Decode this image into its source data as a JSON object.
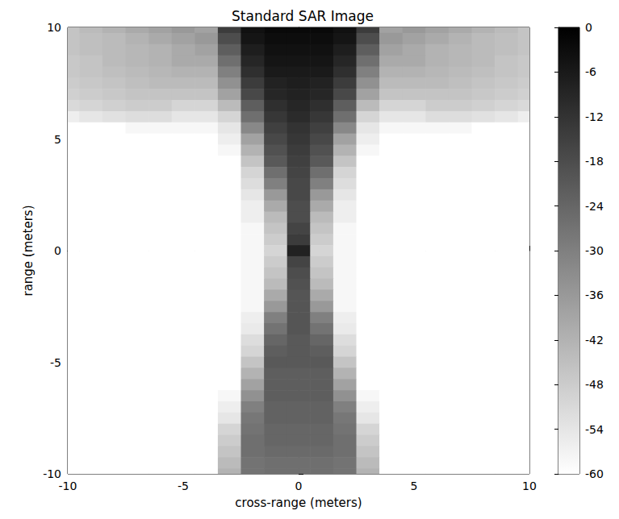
{
  "chart_data": {
    "type": "heatmap",
    "title": "Standard SAR Image",
    "x_label": "cross-range (meters)",
    "y_label": "range (meters)",
    "xlim": [
      -10,
      10
    ],
    "ylim": [
      -10,
      10
    ],
    "xticks": [
      -10,
      -5,
      0,
      5,
      10
    ],
    "yticks": [
      -10,
      -5,
      0,
      5,
      10
    ],
    "grid": false,
    "x": [
      -10,
      -9,
      -8,
      -7,
      -6,
      -5,
      -4,
      -3,
      -2,
      -1,
      0,
      1,
      2,
      3,
      4,
      5,
      6,
      7,
      8,
      9,
      10
    ],
    "y": [
      10,
      9.5,
      9,
      8.5,
      8,
      7.5,
      7,
      6.5,
      6,
      5.5,
      5,
      4.5,
      4,
      3.5,
      3,
      2.5,
      2,
      1.5,
      1,
      0.5,
      0,
      -0.5,
      -1,
      -1.5,
      -2,
      -2.5,
      -3,
      -3.5,
      -4,
      -4.5,
      -5,
      -5.5,
      -6,
      -6.5,
      -7,
      -7.5,
      -8,
      -8.5,
      -9,
      -9.5,
      -10
    ],
    "cells": [
      [
        -46,
        -44,
        -42,
        -40,
        -38,
        -36,
        -38,
        -14,
        -4,
        -2,
        -2,
        -2,
        -4,
        -14,
        -38,
        -36,
        -38,
        -40,
        -42,
        -44,
        -46
      ],
      [
        -46,
        -45,
        -44,
        -42,
        -40,
        -38,
        -36,
        -18,
        -5,
        -3,
        -3,
        -3,
        -5,
        -18,
        -36,
        -38,
        -40,
        -42,
        -44,
        -45,
        -46
      ],
      [
        -46,
        -45,
        -44,
        -43,
        -42,
        -40,
        -38,
        -22,
        -7,
        -4,
        -4,
        -4,
        -7,
        -22,
        -38,
        -40,
        -42,
        -43,
        -44,
        -45,
        -46
      ],
      [
        -47,
        -46,
        -44,
        -43,
        -42,
        -40,
        -40,
        -26,
        -9,
        -5,
        -5,
        -5,
        -9,
        -26,
        -40,
        -40,
        -42,
        -43,
        -44,
        -46,
        -47
      ],
      [
        -47,
        -46,
        -45,
        -44,
        -43,
        -42,
        -42,
        -30,
        -11,
        -6,
        -6,
        -6,
        -11,
        -30,
        -42,
        -42,
        -43,
        -44,
        -45,
        -46,
        -47
      ],
      [
        -48,
        -47,
        -46,
        -45,
        -44,
        -44,
        -44,
        -34,
        -14,
        -8,
        -7,
        -8,
        -14,
        -34,
        -44,
        -44,
        -44,
        -45,
        -46,
        -47,
        -48
      ],
      [
        -49,
        -48,
        -47,
        -46,
        -46,
        -46,
        -46,
        -38,
        -17,
        -9,
        -8,
        -9,
        -17,
        -38,
        -46,
        -46,
        -46,
        -46,
        -47,
        -48,
        -49
      ],
      [
        -51,
        -50,
        -49,
        -48,
        -48,
        -50,
        -50,
        -44,
        -22,
        -11,
        -9,
        -11,
        -22,
        -44,
        -50,
        -50,
        -48,
        -48,
        -49,
        -50,
        -51
      ],
      [
        -56,
        -54,
        -53,
        -52,
        -52,
        -54,
        -54,
        -50,
        -26,
        -13,
        -10,
        -13,
        -26,
        -50,
        -54,
        -54,
        -52,
        -52,
        -53,
        -54,
        -56
      ],
      [
        -60,
        -60,
        -60,
        -58,
        -58,
        -58,
        -58,
        -54,
        -32,
        -15,
        -12,
        -15,
        -32,
        -54,
        -58,
        -58,
        -58,
        -58,
        -60,
        -60,
        -60
      ],
      [
        -60,
        -60,
        -60,
        -60,
        -60,
        -60,
        -60,
        -56,
        -38,
        -17,
        -13,
        -17,
        -38,
        -56,
        -60,
        -60,
        -60,
        -60,
        -60,
        -60,
        -60
      ],
      [
        -60,
        -60,
        -60,
        -60,
        -60,
        -60,
        -60,
        -58,
        -42,
        -19,
        -14,
        -19,
        -42,
        -58,
        -60,
        -60,
        -60,
        -60,
        -60,
        -60,
        -60
      ],
      [
        -60,
        -60,
        -60,
        -60,
        -60,
        -60,
        -60,
        -60,
        -46,
        -21,
        -15,
        -21,
        -46,
        -60,
        -60,
        -60,
        -60,
        -60,
        -60,
        -60,
        -60
      ],
      [
        -60,
        -60,
        -60,
        -60,
        -60,
        -60,
        -60,
        -60,
        -50,
        -26,
        -16,
        -26,
        -50,
        -60,
        -60,
        -60,
        -60,
        -60,
        -60,
        -60,
        -60
      ],
      [
        -60,
        -60,
        -60,
        -60,
        -60,
        -60,
        -60,
        -60,
        -52,
        -30,
        -17,
        -30,
        -52,
        -60,
        -60,
        -60,
        -60,
        -60,
        -60,
        -60,
        -60
      ],
      [
        -60,
        -60,
        -60,
        -60,
        -60,
        -60,
        -60,
        -60,
        -54,
        -36,
        -17,
        -36,
        -54,
        -60,
        -60,
        -60,
        -60,
        -60,
        -60,
        -60,
        -60
      ],
      [
        -60,
        -60,
        -60,
        -60,
        -60,
        -60,
        -60,
        -60,
        -56,
        -40,
        -18,
        -40,
        -56,
        -60,
        -60,
        -60,
        -60,
        -60,
        -60,
        -60,
        -60
      ],
      [
        -60,
        -60,
        -60,
        -60,
        -60,
        -60,
        -60,
        -60,
        -56,
        -44,
        -18,
        -44,
        -56,
        -60,
        -60,
        -60,
        -60,
        -60,
        -60,
        -60,
        -60
      ],
      [
        -60,
        -60,
        -60,
        -60,
        -60,
        -60,
        -60,
        -60,
        -58,
        -46,
        -16,
        -46,
        -58,
        -60,
        -60,
        -60,
        -60,
        -60,
        -60,
        -60,
        -60
      ],
      [
        -60,
        -60,
        -60,
        -60,
        -60,
        -60,
        -60,
        -60,
        -58,
        -48,
        -14,
        -48,
        -58,
        -60,
        -60,
        -60,
        -60,
        -60,
        -60,
        -60,
        -60
      ],
      [
        -60,
        -60,
        -60,
        -60,
        -60,
        -60,
        -60,
        -60,
        -58,
        -50,
        -8,
        -50,
        -58,
        -60,
        -60,
        -60,
        -60,
        -60,
        -60,
        -60,
        -60
      ],
      [
        -60,
        -60,
        -60,
        -60,
        -60,
        -60,
        -60,
        -60,
        -58,
        -48,
        -16,
        -48,
        -58,
        -60,
        -60,
        -60,
        -60,
        -60,
        -60,
        -60,
        -60
      ],
      [
        -60,
        -60,
        -60,
        -60,
        -60,
        -60,
        -60,
        -60,
        -58,
        -46,
        -18,
        -46,
        -58,
        -60,
        -60,
        -60,
        -60,
        -60,
        -60,
        -60,
        -60
      ],
      [
        -60,
        -60,
        -60,
        -60,
        -60,
        -60,
        -60,
        -60,
        -58,
        -44,
        -19,
        -44,
        -58,
        -60,
        -60,
        -60,
        -60,
        -60,
        -60,
        -60,
        -60
      ],
      [
        -60,
        -60,
        -60,
        -60,
        -60,
        -60,
        -60,
        -60,
        -58,
        -40,
        -20,
        -40,
        -58,
        -60,
        -60,
        -60,
        -60,
        -60,
        -60,
        -60,
        -60
      ],
      [
        -60,
        -60,
        -60,
        -60,
        -60,
        -60,
        -60,
        -60,
        -58,
        -36,
        -20,
        -36,
        -58,
        -60,
        -60,
        -60,
        -60,
        -60,
        -60,
        -60,
        -60
      ],
      [
        -60,
        -60,
        -60,
        -60,
        -60,
        -60,
        -60,
        -60,
        -56,
        -30,
        -20,
        -30,
        -56,
        -60,
        -60,
        -60,
        -60,
        -60,
        -60,
        -60,
        -60
      ],
      [
        -60,
        -60,
        -60,
        -60,
        -60,
        -60,
        -60,
        -60,
        -55,
        -27,
        -20,
        -27,
        -55,
        -60,
        -60,
        -60,
        -60,
        -60,
        -60,
        -60,
        -60
      ],
      [
        -60,
        -60,
        -60,
        -60,
        -60,
        -60,
        -60,
        -60,
        -52,
        -24,
        -21,
        -24,
        -52,
        -60,
        -60,
        -60,
        -60,
        -60,
        -60,
        -60,
        -60
      ],
      [
        -60,
        -60,
        -60,
        -60,
        -60,
        -60,
        -60,
        -60,
        -50,
        -22,
        -21,
        -22,
        -50,
        -60,
        -60,
        -60,
        -60,
        -60,
        -60,
        -60,
        -60
      ],
      [
        -60,
        -60,
        -60,
        -60,
        -60,
        -60,
        -60,
        -60,
        -46,
        -21,
        -21,
        -21,
        -46,
        -60,
        -60,
        -60,
        -60,
        -60,
        -60,
        -60,
        -60
      ],
      [
        -60,
        -60,
        -60,
        -60,
        -60,
        -60,
        -60,
        -60,
        -42,
        -22,
        -22,
        -22,
        -42,
        -60,
        -60,
        -60,
        -60,
        -60,
        -60,
        -60,
        -60
      ],
      [
        -60,
        -60,
        -60,
        -60,
        -60,
        -60,
        -60,
        -60,
        -38,
        -22,
        -22,
        -22,
        -38,
        -60,
        -60,
        -60,
        -60,
        -60,
        -60,
        -60,
        -60
      ],
      [
        -60,
        -60,
        -60,
        -60,
        -60,
        -60,
        -60,
        -58,
        -34,
        -22,
        -22,
        -22,
        -34,
        -58,
        -60,
        -60,
        -60,
        -60,
        -60,
        -60,
        -60
      ],
      [
        -60,
        -60,
        -60,
        -60,
        -60,
        -60,
        -60,
        -56,
        -30,
        -23,
        -23,
        -23,
        -30,
        -56,
        -60,
        -60,
        -60,
        -60,
        -60,
        -60,
        -60
      ],
      [
        -60,
        -60,
        -60,
        -60,
        -60,
        -60,
        -60,
        -54,
        -28,
        -23,
        -23,
        -23,
        -28,
        -54,
        -60,
        -60,
        -60,
        -60,
        -60,
        -60,
        -60
      ],
      [
        -60,
        -60,
        -60,
        -60,
        -60,
        -60,
        -60,
        -50,
        -27,
        -24,
        -24,
        -24,
        -27,
        -50,
        -60,
        -60,
        -60,
        -60,
        -60,
        -60,
        -60
      ],
      [
        -60,
        -60,
        -60,
        -60,
        -60,
        -60,
        -60,
        -48,
        -26,
        -24,
        -24,
        -24,
        -26,
        -48,
        -60,
        -60,
        -60,
        -60,
        -60,
        -60,
        -60
      ],
      [
        -60,
        -60,
        -60,
        -60,
        -60,
        -60,
        -60,
        -46,
        -26,
        -25,
        -25,
        -25,
        -26,
        -46,
        -60,
        -60,
        -60,
        -60,
        -60,
        -60,
        -60
      ],
      [
        -60,
        -60,
        -60,
        -60,
        -60,
        -60,
        -60,
        -44,
        -27,
        -26,
        -26,
        -26,
        -27,
        -44,
        -60,
        -60,
        -60,
        -60,
        -60,
        -60,
        -60
      ],
      [
        -60,
        -60,
        -60,
        -60,
        -60,
        -60,
        -60,
        -42,
        -27,
        -26,
        -26,
        -26,
        -27,
        -42,
        -60,
        -60,
        -60,
        -60,
        -60,
        -60,
        -60
      ]
    ],
    "colorbar": {
      "range": [
        -60,
        0
      ],
      "ticks": [
        -60,
        -54,
        -48,
        -42,
        -36,
        -30,
        -24,
        -18,
        -12,
        -6,
        0
      ],
      "colors": [
        "#ffffff",
        "#000000"
      ]
    }
  }
}
